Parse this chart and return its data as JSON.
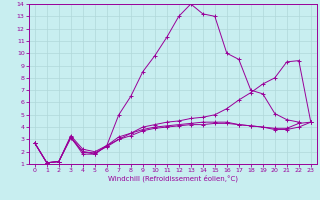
{
  "bg_color": "#c8eef0",
  "line_color": "#990099",
  "grid_color": "#b0d8da",
  "xlabel": "Windchill (Refroidissement éolien,°C)",
  "xlim": [
    -0.5,
    23.5
  ],
  "ylim": [
    1,
    14
  ],
  "xticks": [
    0,
    1,
    2,
    3,
    4,
    5,
    6,
    7,
    8,
    9,
    10,
    11,
    12,
    13,
    14,
    15,
    16,
    17,
    18,
    19,
    20,
    21,
    22,
    23
  ],
  "yticks": [
    1,
    2,
    3,
    4,
    5,
    6,
    7,
    8,
    9,
    10,
    11,
    12,
    13,
    14
  ],
  "series": [
    {
      "x": [
        0,
        1,
        2,
        3,
        4,
        5,
        6,
        7,
        8,
        9,
        10,
        11,
        12,
        13,
        14,
        15,
        16,
        17,
        18,
        19,
        20,
        21,
        22
      ],
      "y": [
        2.7,
        1.1,
        1.2,
        3.2,
        1.8,
        1.8,
        2.5,
        5.0,
        6.5,
        8.5,
        9.8,
        11.3,
        13.0,
        14.0,
        13.2,
        13.0,
        10.0,
        9.5,
        7.0,
        6.7,
        5.1,
        4.6,
        4.4
      ]
    },
    {
      "x": [
        0,
        1,
        2,
        3,
        4,
        5,
        6,
        7,
        8,
        9,
        10,
        11,
        12,
        13,
        14,
        15,
        16,
        17,
        18,
        19,
        20,
        21,
        22,
        23
      ],
      "y": [
        2.7,
        1.1,
        1.2,
        3.3,
        2.2,
        2.0,
        2.5,
        3.2,
        3.5,
        3.8,
        4.0,
        4.1,
        4.2,
        4.3,
        4.4,
        4.4,
        4.4,
        4.2,
        4.1,
        4.0,
        3.9,
        3.9,
        4.3,
        4.4
      ]
    },
    {
      "x": [
        0,
        1,
        2,
        3,
        4,
        5,
        6,
        7,
        8,
        9,
        10,
        11,
        12,
        13,
        14,
        15,
        16,
        17,
        18,
        19,
        20,
        21,
        22,
        23
      ],
      "y": [
        2.7,
        1.1,
        1.2,
        3.2,
        2.0,
        1.8,
        2.5,
        3.0,
        3.5,
        4.0,
        4.2,
        4.4,
        4.5,
        4.7,
        4.8,
        5.0,
        5.5,
        6.2,
        6.8,
        7.5,
        8.0,
        9.3,
        9.4,
        4.4
      ]
    },
    {
      "x": [
        0,
        1,
        2,
        3,
        4,
        5,
        6,
        7,
        8,
        9,
        10,
        11,
        12,
        13,
        14,
        15,
        16,
        17,
        18,
        19,
        20,
        21,
        22,
        23
      ],
      "y": [
        2.7,
        1.1,
        1.2,
        3.1,
        2.0,
        1.9,
        2.4,
        3.0,
        3.3,
        3.7,
        3.9,
        4.0,
        4.1,
        4.2,
        4.2,
        4.3,
        4.3,
        4.2,
        4.1,
        4.0,
        3.8,
        3.8,
        4.0,
        4.4
      ]
    }
  ]
}
